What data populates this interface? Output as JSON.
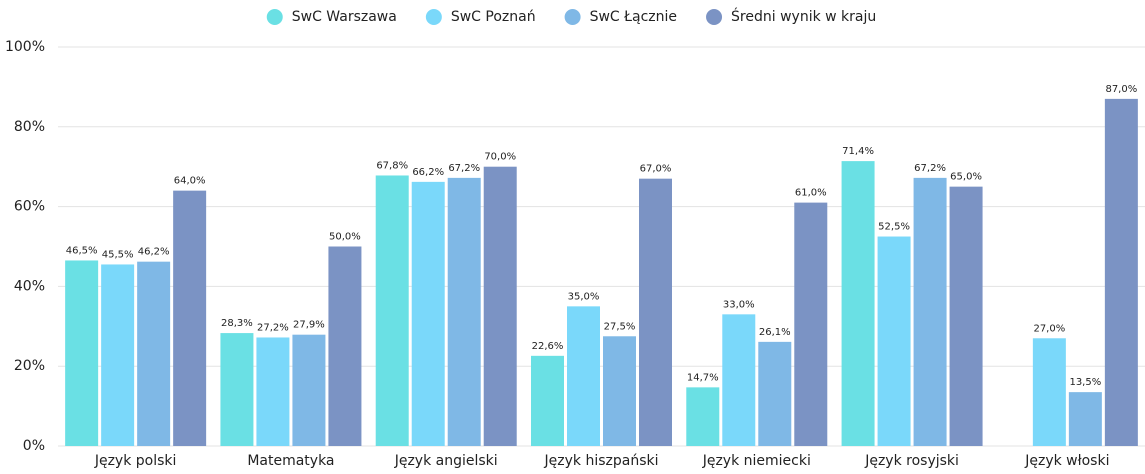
{
  "chart_data": {
    "type": "bar",
    "categories": [
      "Język polski",
      "Matematyka",
      "Język angielski",
      "Język hiszpański",
      "Język niemiecki",
      "Język rosyjski",
      "Język włoski"
    ],
    "series": [
      {
        "name": "SwC Warszawa",
        "color": "#6ae0e4",
        "values": [
          46.5,
          28.3,
          67.8,
          22.6,
          14.7,
          71.4,
          null
        ],
        "value_labels": [
          "46,5%",
          "28,3%",
          "67,8%",
          "22,6%",
          "14,7%",
          "71,4%",
          null
        ]
      },
      {
        "name": "SwC Poznań",
        "color": "#7ad8fa",
        "values": [
          45.5,
          27.2,
          66.2,
          35.0,
          33.0,
          52.5,
          27.0
        ],
        "value_labels": [
          "45,5%",
          "27,2%",
          "66,2%",
          "35,0%",
          "33,0%",
          "52,5%",
          "27,0%"
        ]
      },
      {
        "name": "SwC Łącznie",
        "color": "#7fb8e6",
        "values": [
          46.2,
          27.9,
          67.2,
          27.5,
          26.1,
          67.2,
          13.5
        ],
        "value_labels": [
          "46,2%",
          "27,9%",
          "67,2%",
          "27,5%",
          "26,1%",
          "67,2%",
          "13,5%"
        ]
      },
      {
        "name": "Średni wynik w kraju",
        "color": "#7b93c4",
        "values": [
          64.0,
          50.0,
          70.0,
          67.0,
          61.0,
          65.0,
          87.0
        ],
        "value_labels": [
          "64,0%",
          "50,0%",
          "70,0%",
          "67,0%",
          "61,0%",
          "65,0%",
          "87,0%"
        ]
      }
    ],
    "ylim": [
      0,
      100
    ],
    "yticks": [
      {
        "value": 0,
        "label": "0%"
      },
      {
        "value": 20,
        "label": "20%"
      },
      {
        "value": 40,
        "label": "40%"
      },
      {
        "value": 60,
        "label": "60%"
      },
      {
        "value": 80,
        "label": "80%"
      },
      {
        "value": 100,
        "label": "100%"
      }
    ],
    "grid": true,
    "legend": "top"
  }
}
